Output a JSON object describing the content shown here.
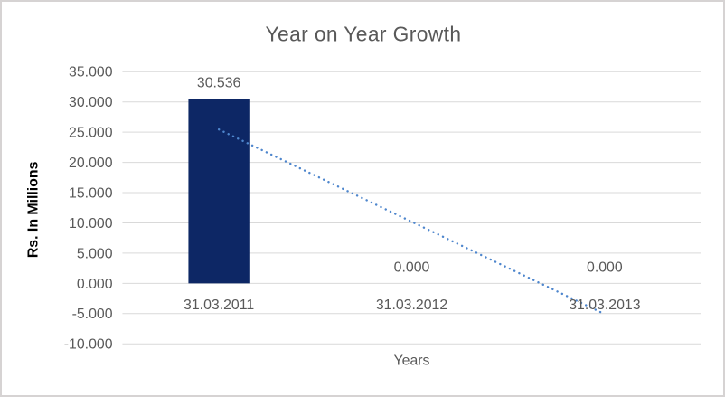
{
  "chart_data": {
    "type": "bar",
    "title": "Year on Year Growth",
    "xlabel": "Years",
    "ylabel": "Rs. In Millions",
    "categories": [
      "31.03.2011",
      "31.03.2012",
      "31.03.2013"
    ],
    "values": [
      30.536,
      0,
      0
    ],
    "data_labels": [
      "30.536",
      "0.000",
      "0.000"
    ],
    "ylim": [
      -10,
      35
    ],
    "ytick_step": 5,
    "ytick_values": [
      35,
      30,
      25,
      20,
      15,
      10,
      5,
      0,
      -5,
      -10
    ],
    "ytick_labels": [
      "35.000",
      "30.000",
      "25.000",
      "20.000",
      "15.000",
      "10.000",
      "5.000",
      "0.000",
      "-5.000",
      "-10.000"
    ],
    "grid": true,
    "legend": "none",
    "trendline": {
      "type": "linear",
      "style": "dotted",
      "start_value": 25.447,
      "end_value": -5.089
    },
    "colors": {
      "bar": "#0d2765",
      "trendline": "#4e86cd",
      "gridline": "#d9d9d9",
      "text_gray": "#595959",
      "axis_title_black": "#000000",
      "frame_border": "#d6d3d3",
      "background": "#ffffff"
    }
  }
}
